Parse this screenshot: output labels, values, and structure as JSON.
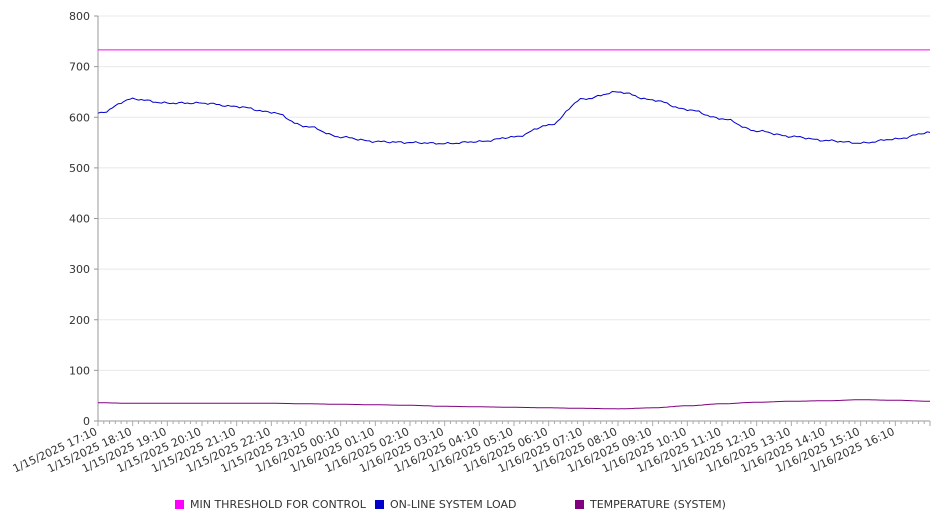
{
  "chart_data": {
    "type": "line",
    "title": "",
    "xlabel": "",
    "ylabel": "",
    "ylim": [
      0,
      800
    ],
    "y_ticks": [
      0,
      100,
      200,
      300,
      400,
      500,
      600,
      700,
      800
    ],
    "grid": "horizontal",
    "legend_position": "bottom",
    "x_range": [
      "1/15/2025 17:10",
      "1/16/2025 17:10"
    ],
    "x_tick_labels": [
      "1/15/2025 17:10",
      "1/15/2025 18:10",
      "1/15/2025 19:10",
      "1/15/2025 20:10",
      "1/15/2025 21:10",
      "1/15/2025 22:10",
      "1/15/2025 23:10",
      "1/16/2025 00:10",
      "1/16/2025 01:10",
      "1/16/2025 02:10",
      "1/16/2025 03:10",
      "1/16/2025 04:10",
      "1/16/2025 05:10",
      "1/16/2025 06:10",
      "1/16/2025 07:10",
      "1/16/2025 08:10",
      "1/16/2025 09:10",
      "1/16/2025 10:10",
      "1/16/2025 11:10",
      "1/16/2025 12:10",
      "1/16/2025 13:10",
      "1/16/2025 14:10",
      "1/16/2025 15:10",
      "1/16/2025 16:10"
    ],
    "x": [
      "1/15/2025 17:10",
      "1/15/2025 18:10",
      "1/15/2025 19:10",
      "1/15/2025 20:10",
      "1/15/2025 21:10",
      "1/15/2025 22:10",
      "1/15/2025 23:10",
      "1/16/2025 00:10",
      "1/16/2025 01:10",
      "1/16/2025 02:10",
      "1/16/2025 03:10",
      "1/16/2025 04:10",
      "1/16/2025 05:10",
      "1/16/2025 06:10",
      "1/16/2025 07:10",
      "1/16/2025 08:10",
      "1/16/2025 09:10",
      "1/16/2025 10:10",
      "1/16/2025 11:10",
      "1/16/2025 12:10",
      "1/16/2025 13:10",
      "1/16/2025 14:10",
      "1/16/2025 15:10",
      "1/16/2025 16:10",
      "1/16/2025 17:10"
    ],
    "series": [
      {
        "name": "MIN THRESHOLD FOR CONTROL",
        "color": "#ff00ff",
        "values": [
          733,
          733,
          733,
          733,
          733,
          733,
          733,
          733,
          733,
          733,
          733,
          733,
          733,
          733,
          733,
          733,
          733,
          733,
          733,
          733,
          733,
          733,
          733,
          733,
          733
        ]
      },
      {
        "name": "ON-LINE SYSTEM LOAD",
        "color": "#0000cc",
        "values": [
          608,
          636,
          628,
          628,
          621,
          610,
          582,
          561,
          552,
          550,
          548,
          552,
          561,
          584,
          636,
          650,
          634,
          615,
          597,
          573,
          562,
          554,
          549,
          557,
          570
        ]
      },
      {
        "name": "TEMPERATURE (SYSTEM)",
        "color": "#800080",
        "values": [
          36,
          35,
          35,
          35,
          35,
          35,
          34,
          33,
          32,
          31,
          29,
          28,
          27,
          26,
          25,
          24,
          26,
          30,
          34,
          37,
          39,
          40,
          42,
          41,
          39
        ]
      }
    ]
  }
}
